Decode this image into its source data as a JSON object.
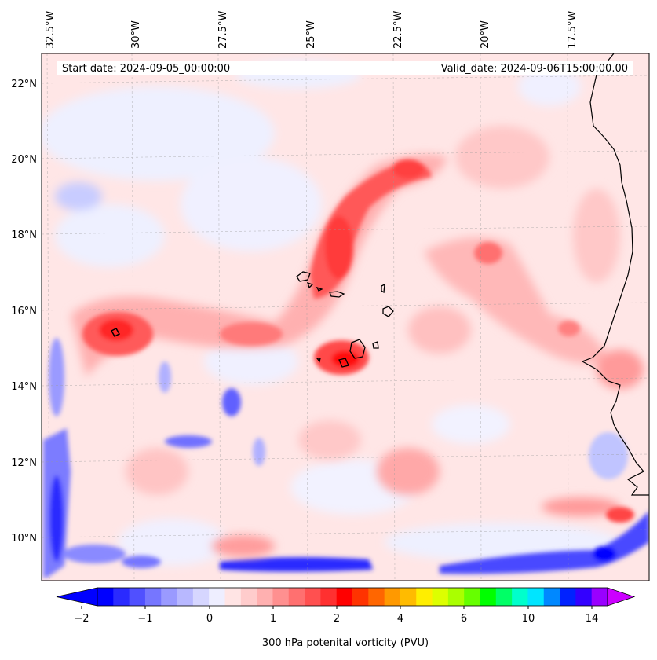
{
  "header": {
    "start_date": "Start date: 2024-09-05_00:00:00",
    "valid_date": "Valid_date: 2024-09-06T15:00:00.00"
  },
  "longitude_labels": [
    "32.5°W",
    "30°W",
    "27.5°W",
    "25°W",
    "22.5°W",
    "20°W",
    "17.5°W"
  ],
  "latitude_labels": [
    "22°N",
    "20°N",
    "18°N",
    "16°N",
    "14°N",
    "12°N",
    "10°N"
  ],
  "colorbar": {
    "label": "300 hPa potenital vorticity (PVU)",
    "tick_labels": [
      "−2",
      "−1",
      "0",
      "1",
      "2",
      "4",
      "6",
      "10",
      "14"
    ],
    "colors": [
      "#0000ff",
      "#2a2aff",
      "#5050ff",
      "#7676ff",
      "#9a9aff",
      "#b8b8ff",
      "#d6d6ff",
      "#eeeeff",
      "#ffe4e4",
      "#ffcccc",
      "#ffb0b0",
      "#ff9090",
      "#ff7070",
      "#ff5050",
      "#ff3030",
      "#ff0000",
      "#ff3300",
      "#ff6600",
      "#ff9900",
      "#ffbb00",
      "#ffee00",
      "#ddff00",
      "#aaff00",
      "#66ff00",
      "#00ff00",
      "#00ff66",
      "#00ffcc",
      "#00e5ff",
      "#0088ff",
      "#0022ff",
      "#3300ff",
      "#9900ff"
    ],
    "extend_low_color": "#0000ff",
    "extend_high_color": "#cc00ff"
  },
  "colors": {
    "background_field": "#ffe8e8",
    "low_pv": "#3a3aff",
    "high_pv": "#ff2020",
    "coastline": "#000000"
  }
}
